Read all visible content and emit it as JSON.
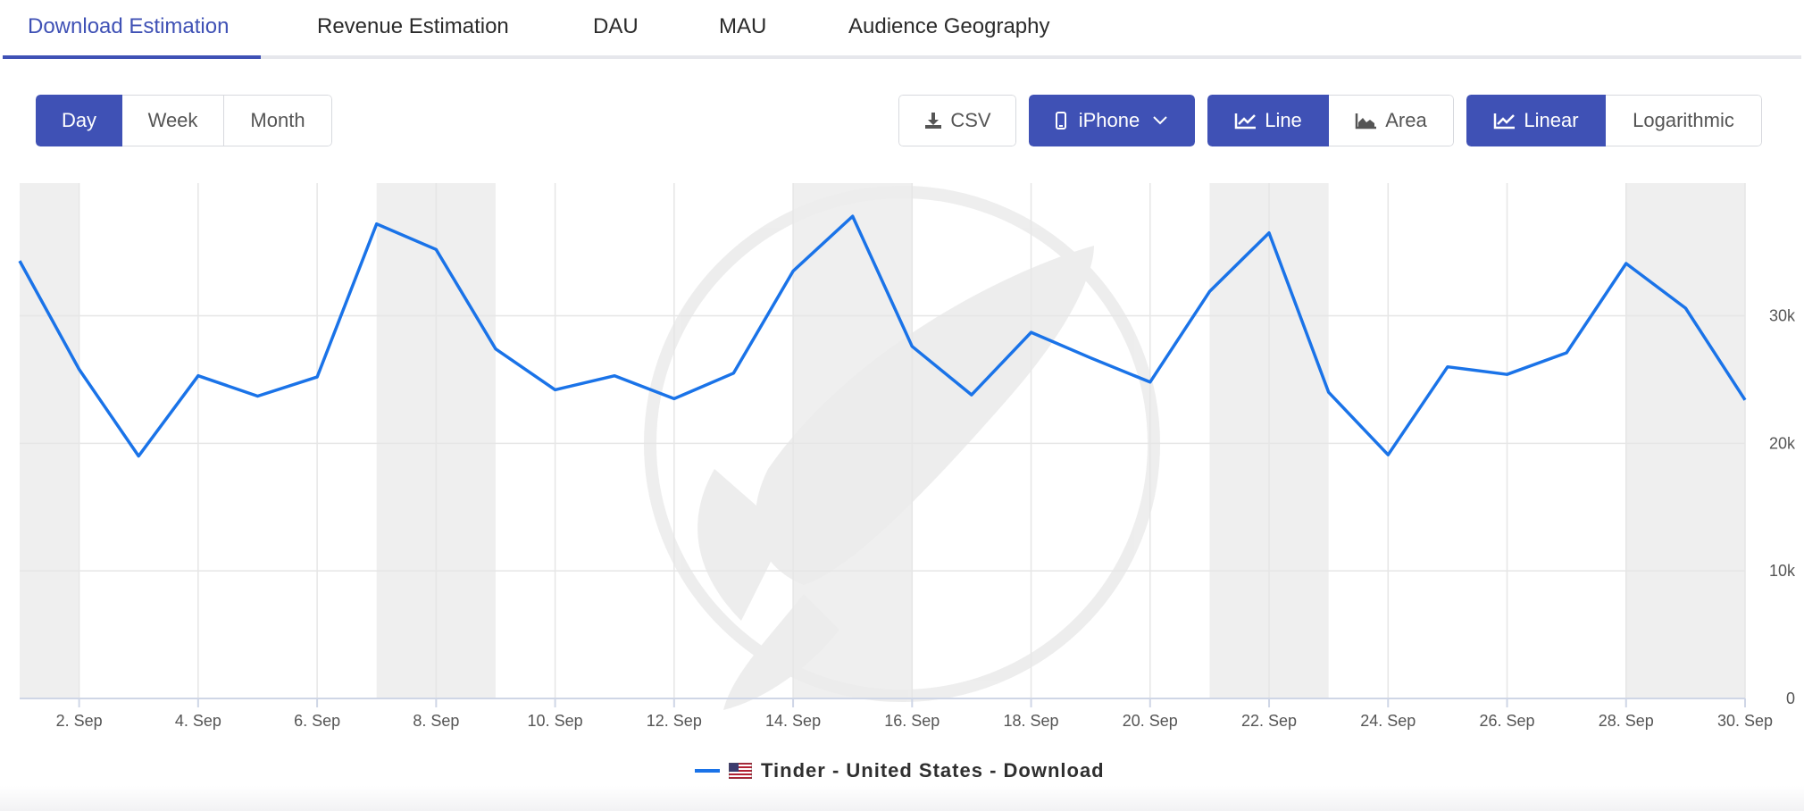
{
  "tabs": [
    {
      "label": "Download Estimation",
      "active": true
    },
    {
      "label": "Revenue Estimation",
      "active": false
    },
    {
      "label": "DAU",
      "active": false
    },
    {
      "label": "MAU",
      "active": false
    },
    {
      "label": "Audience Geography",
      "active": false
    }
  ],
  "toolbar": {
    "period": {
      "day": "Day",
      "week": "Week",
      "month": "Month",
      "selected": "Day"
    },
    "csv_label": "CSV",
    "device_label": "iPhone",
    "chart_type": {
      "line": "Line",
      "area": "Area",
      "selected": "Line"
    },
    "scale": {
      "linear": "Linear",
      "log": "Logarithmic",
      "selected": "Linear"
    }
  },
  "icons": {
    "download": "download-icon",
    "device": "phone-icon",
    "dropdown": "chevron-down-icon",
    "line": "line-chart-icon",
    "area": "area-chart-icon",
    "flag": "us-flag-icon"
  },
  "colors": {
    "accent": "#3f51b5",
    "series": "#1a73e8",
    "weekend_band": "#efefef",
    "grid": "#e6e6e6"
  },
  "chart_data": {
    "type": "line",
    "x_dates": [
      "1. Sep",
      "2. Sep",
      "3. Sep",
      "4. Sep",
      "5. Sep",
      "6. Sep",
      "7. Sep",
      "8. Sep",
      "9. Sep",
      "10. Sep",
      "11. Sep",
      "12. Sep",
      "13. Sep",
      "14. Sep",
      "15. Sep",
      "16. Sep",
      "17. Sep",
      "18. Sep",
      "19. Sep",
      "20. Sep",
      "21. Sep",
      "22. Sep",
      "23. Sep",
      "24. Sep",
      "25. Sep",
      "26. Sep",
      "27. Sep",
      "28. Sep",
      "29. Sep",
      "30. Sep"
    ],
    "x_tick_labels": [
      "2. Sep",
      "4. Sep",
      "6. Sep",
      "8. Sep",
      "10. Sep",
      "12. Sep",
      "14. Sep",
      "16. Sep",
      "18. Sep",
      "20. Sep",
      "22. Sep",
      "24. Sep",
      "26. Sep",
      "28. Sep",
      "30. Sep"
    ],
    "series": [
      {
        "name": "Tinder - United States - Download",
        "values": [
          34300,
          25800,
          19000,
          25300,
          23700,
          25200,
          37200,
          35200,
          27400,
          24200,
          25300,
          23500,
          25500,
          33500,
          37800,
          27600,
          23800,
          28700,
          26700,
          24800,
          31900,
          36500,
          24000,
          19100,
          26000,
          25400,
          27100,
          34100,
          30600,
          23400
        ]
      }
    ],
    "weekend_bands": [
      [
        "1. Sep",
        "2. Sep"
      ],
      [
        "7. Sep",
        "9. Sep"
      ],
      [
        "14. Sep",
        "16. Sep"
      ],
      [
        "21. Sep",
        "23. Sep"
      ],
      [
        "28. Sep",
        "30. Sep"
      ]
    ],
    "y_ticks": [
      0,
      10000,
      20000,
      30000
    ],
    "y_tick_labels": [
      "0",
      "10k",
      "20k",
      "30k"
    ],
    "ylim": [
      0,
      40400
    ],
    "y_axis_side": "right",
    "grid": true,
    "legend_position": "bottom-center",
    "title": "",
    "xlabel": "",
    "ylabel": ""
  }
}
